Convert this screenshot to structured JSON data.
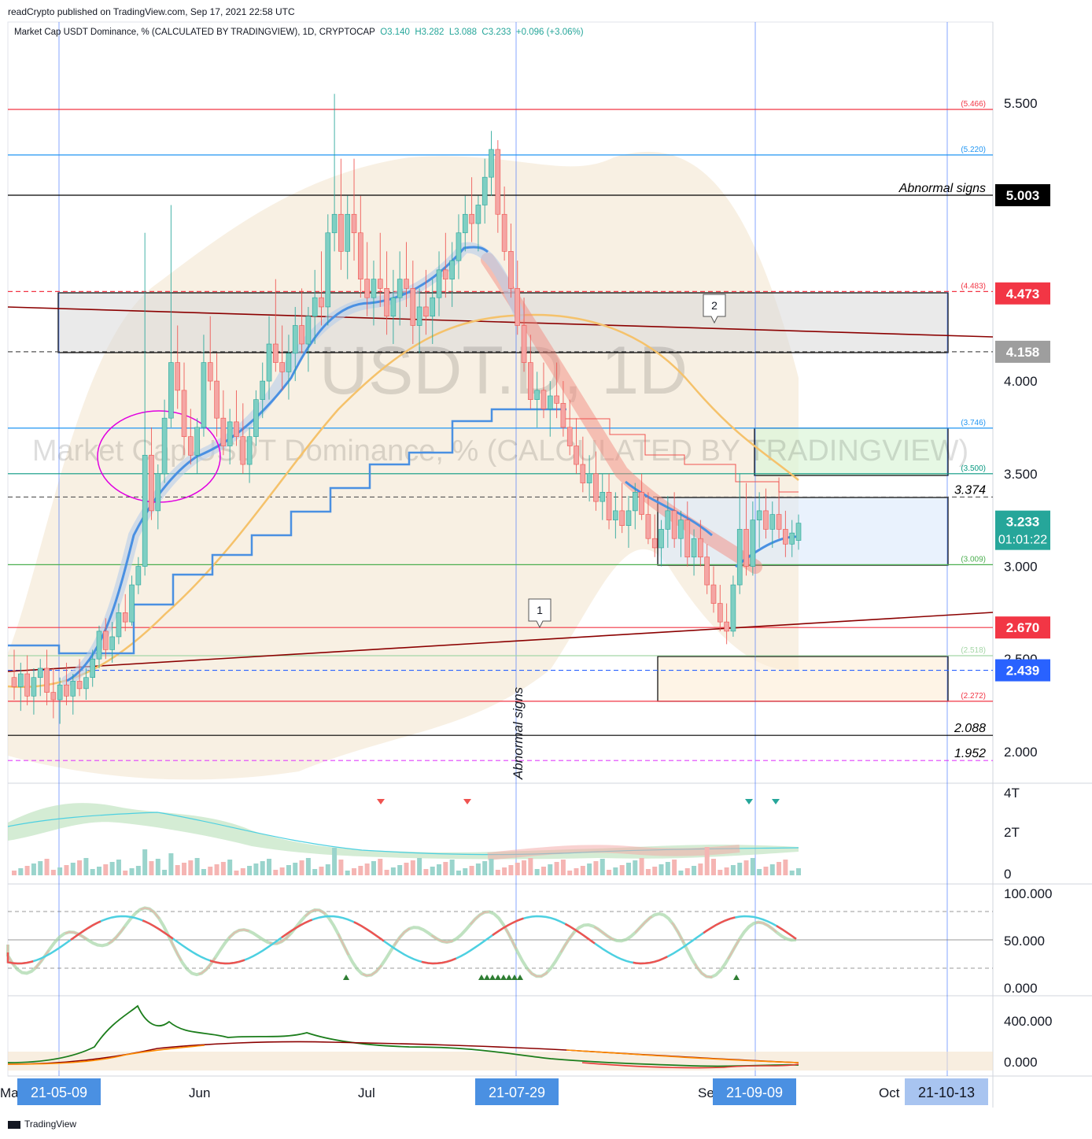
{
  "header": {
    "published": "readCrypto published on TradingView.com, Sep 17, 2021 22:58 UTC"
  },
  "legend": {
    "symbol": "Market Cap USDT Dominance, % (CALCULATED BY TRADINGVIEW), 1D, CRYPTOCAP",
    "open": "O3.140",
    "high": "H3.282",
    "low": "L3.088",
    "close": "C3.233",
    "change": "+0.096 (+3.06%)"
  },
  "watermark": {
    "big": "USDT.D, 1D",
    "small": "Market Cap USDT Dominance, % (CALCULATED BY TRADINGVIEW)"
  },
  "footer": {
    "brand": "TradingView"
  },
  "colors": {
    "up": "#26a69a",
    "down": "#ef5350",
    "blue_line": "#4a90e2",
    "orange_ma": "#f5c26b",
    "dark_red_trend": "#8b0000",
    "axis_label_red": "#f23645",
    "axis_label_blue": "#2962ff"
  },
  "chart_data": {
    "type": "candlestick",
    "price_axis": {
      "ticks": [
        "5.500",
        "5.000",
        "4.000",
        "3.500",
        "3.000",
        "2.500",
        "2.000"
      ],
      "range": [
        1.85,
        5.85
      ]
    },
    "time_axis": {
      "labels": [
        "Ma",
        "Jun",
        "Jul",
        "Se",
        "Oct"
      ],
      "highlighted_dates": [
        "21-05-09",
        "21-07-29",
        "21-09-09",
        "21-10-13"
      ]
    },
    "axis_badges": [
      {
        "text": "5.003",
        "price": 5.003,
        "bg": "#000000"
      },
      {
        "text": "4.473",
        "price": 4.473,
        "bg": "#f23645"
      },
      {
        "text": "4.158",
        "price": 4.158,
        "bg": "#9e9e9e"
      },
      {
        "text": "3.233",
        "sub": "01:01:22",
        "price": 3.233,
        "bg": "#26a69a"
      },
      {
        "text": "2.670",
        "price": 2.67,
        "bg": "#f23645"
      },
      {
        "text": "2.439",
        "price": 2.439,
        "bg": "#2962ff"
      }
    ],
    "level_lines": [
      {
        "price": 5.466,
        "label": "(5.466)",
        "color": "#f23645",
        "style": "solid"
      },
      {
        "price": 5.22,
        "label": "(5.220)",
        "color": "#2196f3",
        "style": "solid"
      },
      {
        "price": 5.003,
        "label": "Abnormal signs",
        "color": "#000000",
        "style": "solid"
      },
      {
        "price": 4.483,
        "label": "(4.483)",
        "color": "#f23645",
        "style": "dashed"
      },
      {
        "price": 4.158,
        "label": "",
        "color": "#555555",
        "style": "dashed"
      },
      {
        "price": 3.746,
        "label": "(3.746)",
        "color": "#2196f3",
        "style": "solid"
      },
      {
        "price": 3.5,
        "label": "(3.500)",
        "color": "#089981",
        "style": "solid"
      },
      {
        "price": 3.374,
        "label": "3.374",
        "color": "#555555",
        "style": "dashed"
      },
      {
        "price": 3.009,
        "label": "(3.009)",
        "color": "#4caf50",
        "style": "solid"
      },
      {
        "price": 2.67,
        "label": "",
        "color": "#f23645",
        "style": "solid"
      },
      {
        "price": 2.518,
        "label": "(2.518)",
        "color": "#a5d6a7",
        "style": "solid"
      },
      {
        "price": 2.439,
        "label": "",
        "color": "#2962ff",
        "style": "dashed"
      },
      {
        "price": 2.272,
        "label": "(2.272)",
        "color": "#f23645",
        "style": "solid"
      },
      {
        "price": 2.088,
        "label": "2.088",
        "color": "#000000",
        "style": "solid"
      },
      {
        "price": 1.952,
        "label": "1.952",
        "color": "#e040fb",
        "style": "dashed"
      }
    ],
    "annotations": [
      {
        "text": "Abnormal signs",
        "orientation": "vertical"
      },
      {
        "text": "1",
        "kind": "callout"
      },
      {
        "text": "2",
        "kind": "callout"
      }
    ],
    "sub_panes": [
      {
        "name": "volume",
        "ticks": [
          "4T",
          "2T",
          "0"
        ]
      },
      {
        "name": "stoch_rsi",
        "ticks": [
          "100.000",
          "50.000",
          "0.000"
        ]
      },
      {
        "name": "obv",
        "ticks": [
          "400.000",
          "0.000"
        ]
      }
    ],
    "candles": [
      {
        "o": 2.4,
        "h": 2.55,
        "l": 2.28,
        "c": 2.35
      },
      {
        "o": 2.35,
        "h": 2.48,
        "l": 2.22,
        "c": 2.42
      },
      {
        "o": 2.42,
        "h": 2.52,
        "l": 2.25,
        "c": 2.3
      },
      {
        "o": 2.3,
        "h": 2.45,
        "l": 2.2,
        "c": 2.4
      },
      {
        "o": 2.4,
        "h": 2.5,
        "l": 2.3,
        "c": 2.45
      },
      {
        "o": 2.45,
        "h": 2.55,
        "l": 2.25,
        "c": 2.32
      },
      {
        "o": 2.32,
        "h": 2.45,
        "l": 2.18,
        "c": 2.28
      },
      {
        "o": 2.28,
        "h": 2.4,
        "l": 2.15,
        "c": 2.36
      },
      {
        "o": 2.36,
        "h": 2.48,
        "l": 2.25,
        "c": 2.3
      },
      {
        "o": 2.3,
        "h": 2.42,
        "l": 2.2,
        "c": 2.38
      },
      {
        "o": 2.38,
        "h": 2.5,
        "l": 2.3,
        "c": 2.34
      },
      {
        "o": 2.34,
        "h": 2.45,
        "l": 2.28,
        "c": 2.4
      },
      {
        "o": 2.4,
        "h": 2.55,
        "l": 2.35,
        "c": 2.5
      },
      {
        "o": 2.5,
        "h": 2.68,
        "l": 2.45,
        "c": 2.65
      },
      {
        "o": 2.65,
        "h": 2.72,
        "l": 2.5,
        "c": 2.55
      },
      {
        "o": 2.55,
        "h": 2.7,
        "l": 2.48,
        "c": 2.62
      },
      {
        "o": 2.62,
        "h": 2.8,
        "l": 2.58,
        "c": 2.75
      },
      {
        "o": 2.75,
        "h": 2.85,
        "l": 2.65,
        "c": 2.7
      },
      {
        "o": 2.7,
        "h": 2.95,
        "l": 2.68,
        "c": 2.9
      },
      {
        "o": 2.9,
        "h": 3.05,
        "l": 2.85,
        "c": 3.0
      },
      {
        "o": 3.0,
        "h": 4.8,
        "l": 2.95,
        "c": 3.6
      },
      {
        "o": 3.6,
        "h": 3.75,
        "l": 3.25,
        "c": 3.3
      },
      {
        "o": 3.3,
        "h": 3.55,
        "l": 3.2,
        "c": 3.5
      },
      {
        "o": 3.5,
        "h": 3.9,
        "l": 3.45,
        "c": 3.8
      },
      {
        "o": 3.8,
        "h": 4.95,
        "l": 3.75,
        "c": 4.1
      },
      {
        "o": 4.1,
        "h": 4.3,
        "l": 3.85,
        "c": 3.95
      },
      {
        "o": 3.95,
        "h": 4.1,
        "l": 3.6,
        "c": 3.7
      },
      {
        "o": 3.7,
        "h": 3.85,
        "l": 3.55,
        "c": 3.6
      },
      {
        "o": 3.6,
        "h": 3.8,
        "l": 3.5,
        "c": 3.75
      },
      {
        "o": 3.75,
        "h": 4.25,
        "l": 3.7,
        "c": 4.1
      },
      {
        "o": 4.1,
        "h": 4.35,
        "l": 3.95,
        "c": 4.0
      },
      {
        "o": 4.0,
        "h": 4.15,
        "l": 3.7,
        "c": 3.8
      },
      {
        "o": 3.8,
        "h": 3.95,
        "l": 3.6,
        "c": 3.65
      },
      {
        "o": 3.65,
        "h": 3.85,
        "l": 3.55,
        "c": 3.78
      },
      {
        "o": 3.78,
        "h": 3.95,
        "l": 3.65,
        "c": 3.7
      },
      {
        "o": 3.7,
        "h": 3.88,
        "l": 3.5,
        "c": 3.55
      },
      {
        "o": 3.55,
        "h": 3.75,
        "l": 3.45,
        "c": 3.7
      },
      {
        "o": 3.7,
        "h": 3.95,
        "l": 3.65,
        "c": 3.9
      },
      {
        "o": 3.9,
        "h": 4.1,
        "l": 3.8,
        "c": 4.0
      },
      {
        "o": 4.0,
        "h": 4.35,
        "l": 3.9,
        "c": 4.2
      },
      {
        "o": 4.2,
        "h": 4.55,
        "l": 4.05,
        "c": 4.1
      },
      {
        "o": 4.1,
        "h": 4.3,
        "l": 3.95,
        "c": 4.05
      },
      {
        "o": 4.05,
        "h": 4.25,
        "l": 3.9,
        "c": 4.15
      },
      {
        "o": 4.15,
        "h": 4.4,
        "l": 4.0,
        "c": 4.3
      },
      {
        "o": 4.3,
        "h": 4.5,
        "l": 4.15,
        "c": 4.2
      },
      {
        "o": 4.2,
        "h": 4.4,
        "l": 4.05,
        "c": 4.35
      },
      {
        "o": 4.35,
        "h": 4.6,
        "l": 4.2,
        "c": 4.45
      },
      {
        "o": 4.45,
        "h": 4.7,
        "l": 4.3,
        "c": 4.4
      },
      {
        "o": 4.4,
        "h": 4.9,
        "l": 4.3,
        "c": 4.8
      },
      {
        "o": 4.8,
        "h": 5.55,
        "l": 4.7,
        "c": 4.9
      },
      {
        "o": 4.9,
        "h": 5.2,
        "l": 4.6,
        "c": 4.7
      },
      {
        "o": 4.7,
        "h": 5.0,
        "l": 4.55,
        "c": 4.9
      },
      {
        "o": 4.9,
        "h": 5.2,
        "l": 4.65,
        "c": 4.8
      },
      {
        "o": 4.8,
        "h": 5.0,
        "l": 4.45,
        "c": 4.55
      },
      {
        "o": 4.55,
        "h": 4.75,
        "l": 4.35,
        "c": 4.45
      },
      {
        "o": 4.45,
        "h": 4.65,
        "l": 4.3,
        "c": 4.55
      },
      {
        "o": 4.55,
        "h": 4.8,
        "l": 4.4,
        "c": 4.5
      },
      {
        "o": 4.5,
        "h": 4.7,
        "l": 4.25,
        "c": 4.35
      },
      {
        "o": 4.35,
        "h": 4.6,
        "l": 4.2,
        "c": 4.45
      },
      {
        "o": 4.45,
        "h": 4.7,
        "l": 4.3,
        "c": 4.55
      },
      {
        "o": 4.55,
        "h": 4.75,
        "l": 4.4,
        "c": 4.5
      },
      {
        "o": 4.5,
        "h": 4.65,
        "l": 4.2,
        "c": 4.3
      },
      {
        "o": 4.3,
        "h": 4.5,
        "l": 4.15,
        "c": 4.4
      },
      {
        "o": 4.4,
        "h": 4.6,
        "l": 4.25,
        "c": 4.35
      },
      {
        "o": 4.35,
        "h": 4.55,
        "l": 4.2,
        "c": 4.45
      },
      {
        "o": 4.45,
        "h": 4.7,
        "l": 4.35,
        "c": 4.6
      },
      {
        "o": 4.6,
        "h": 4.8,
        "l": 4.45,
        "c": 4.55
      },
      {
        "o": 4.55,
        "h": 4.75,
        "l": 4.4,
        "c": 4.65
      },
      {
        "o": 4.65,
        "h": 4.9,
        "l": 4.55,
        "c": 4.8
      },
      {
        "o": 4.8,
        "h": 5.0,
        "l": 4.7,
        "c": 4.9
      },
      {
        "o": 4.9,
        "h": 5.1,
        "l": 4.75,
        "c": 4.85
      },
      {
        "o": 4.85,
        "h": 5.0,
        "l": 4.7,
        "c": 4.95
      },
      {
        "o": 4.95,
        "h": 5.2,
        "l": 4.85,
        "c": 5.1
      },
      {
        "o": 5.1,
        "h": 5.35,
        "l": 5.0,
        "c": 5.25
      },
      {
        "o": 5.25,
        "h": 5.3,
        "l": 4.8,
        "c": 4.9
      },
      {
        "o": 4.9,
        "h": 5.05,
        "l": 4.65,
        "c": 4.7
      },
      {
        "o": 4.7,
        "h": 4.85,
        "l": 4.45,
        "c": 4.5
      },
      {
        "o": 4.5,
        "h": 4.65,
        "l": 4.25,
        "c": 4.3
      },
      {
        "o": 4.3,
        "h": 4.45,
        "l": 4.05,
        "c": 4.1
      },
      {
        "o": 4.1,
        "h": 4.25,
        "l": 3.85,
        "c": 3.9
      },
      {
        "o": 3.9,
        "h": 4.05,
        "l": 3.75,
        "c": 3.95
      },
      {
        "o": 3.95,
        "h": 4.1,
        "l": 3.8,
        "c": 3.85
      },
      {
        "o": 3.85,
        "h": 4.0,
        "l": 3.7,
        "c": 3.92
      },
      {
        "o": 3.92,
        "h": 4.1,
        "l": 3.8,
        "c": 3.88
      },
      {
        "o": 3.88,
        "h": 4.0,
        "l": 3.7,
        "c": 3.75
      },
      {
        "o": 3.75,
        "h": 3.9,
        "l": 3.6,
        "c": 3.65
      },
      {
        "o": 3.65,
        "h": 3.8,
        "l": 3.5,
        "c": 3.55
      },
      {
        "o": 3.55,
        "h": 3.7,
        "l": 3.4,
        "c": 3.45
      },
      {
        "o": 3.45,
        "h": 3.6,
        "l": 3.35,
        "c": 3.5
      },
      {
        "o": 3.5,
        "h": 3.62,
        "l": 3.3,
        "c": 3.35
      },
      {
        "o": 3.35,
        "h": 3.5,
        "l": 3.25,
        "c": 3.4
      },
      {
        "o": 3.4,
        "h": 3.5,
        "l": 3.2,
        "c": 3.25
      },
      {
        "o": 3.25,
        "h": 3.4,
        "l": 3.15,
        "c": 3.3
      },
      {
        "o": 3.3,
        "h": 3.45,
        "l": 3.18,
        "c": 3.22
      },
      {
        "o": 3.22,
        "h": 3.38,
        "l": 3.1,
        "c": 3.3
      },
      {
        "o": 3.3,
        "h": 3.45,
        "l": 3.2,
        "c": 3.4
      },
      {
        "o": 3.4,
        "h": 3.5,
        "l": 3.25,
        "c": 3.28
      },
      {
        "o": 3.28,
        "h": 3.4,
        "l": 3.12,
        "c": 3.15
      },
      {
        "o": 3.15,
        "h": 3.28,
        "l": 3.05,
        "c": 3.1
      },
      {
        "o": 3.1,
        "h": 3.25,
        "l": 3.0,
        "c": 3.2
      },
      {
        "o": 3.2,
        "h": 3.38,
        "l": 3.1,
        "c": 3.3
      },
      {
        "o": 3.3,
        "h": 3.4,
        "l": 3.1,
        "c": 3.15
      },
      {
        "o": 3.15,
        "h": 3.3,
        "l": 3.05,
        "c": 3.25
      },
      {
        "o": 3.25,
        "h": 3.35,
        "l": 3.0,
        "c": 3.05
      },
      {
        "o": 3.05,
        "h": 3.2,
        "l": 2.95,
        "c": 3.15
      },
      {
        "o": 3.15,
        "h": 3.25,
        "l": 3.0,
        "c": 3.05
      },
      {
        "o": 3.05,
        "h": 3.12,
        "l": 2.85,
        "c": 2.9
      },
      {
        "o": 2.9,
        "h": 3.0,
        "l": 2.75,
        "c": 2.8
      },
      {
        "o": 2.8,
        "h": 2.9,
        "l": 2.65,
        "c": 2.7
      },
      {
        "o": 2.7,
        "h": 2.8,
        "l": 2.58,
        "c": 2.65
      },
      {
        "o": 2.65,
        "h": 2.95,
        "l": 2.62,
        "c": 2.9
      },
      {
        "o": 2.9,
        "h": 3.5,
        "l": 2.85,
        "c": 3.2
      },
      {
        "o": 3.2,
        "h": 3.45,
        "l": 2.95,
        "c": 3.0
      },
      {
        "o": 3.0,
        "h": 3.35,
        "l": 2.95,
        "c": 3.25
      },
      {
        "o": 3.25,
        "h": 3.4,
        "l": 3.1,
        "c": 3.3
      },
      {
        "o": 3.3,
        "h": 3.42,
        "l": 3.15,
        "c": 3.2
      },
      {
        "o": 3.2,
        "h": 3.35,
        "l": 3.1,
        "c": 3.28
      },
      {
        "o": 3.28,
        "h": 3.48,
        "l": 3.15,
        "c": 3.2
      },
      {
        "o": 3.2,
        "h": 3.3,
        "l": 3.05,
        "c": 3.12
      },
      {
        "o": 3.12,
        "h": 3.25,
        "l": 3.05,
        "c": 3.18
      },
      {
        "o": 3.14,
        "h": 3.28,
        "l": 3.09,
        "c": 3.233
      }
    ]
  }
}
